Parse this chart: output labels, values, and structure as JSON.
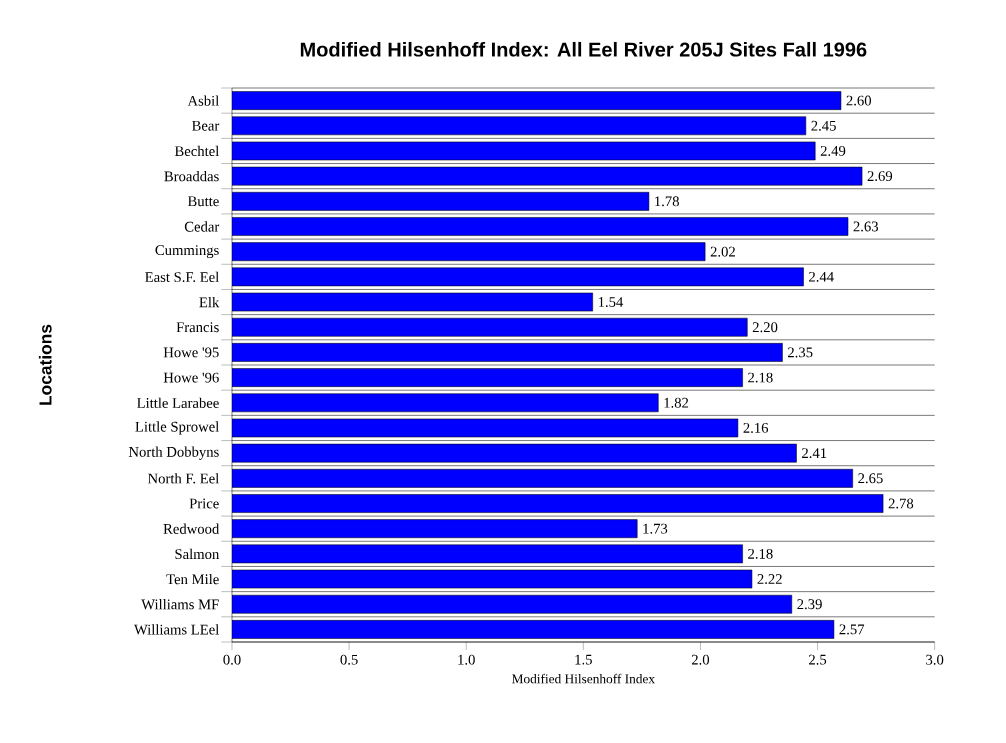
{
  "chart_data": {
    "type": "bar",
    "orientation": "horizontal",
    "title": "Modified Hilsenhoff Index: All Eel River 205J Sites Fall 1996",
    "xlabel": "Modified Hilsenhoff Index",
    "ylabel": "Locations",
    "categories": [
      "Asbil",
      "Bear",
      "Bechtel",
      "Broaddas",
      "Butte",
      "Cedar",
      "Cummings",
      "East S.F. Eel",
      "Elk",
      "Francis",
      "Howe '95",
      "Howe '96",
      "Little Larabee",
      "Little Sprowel",
      "North Dobbyns",
      "North F. Eel",
      "Price",
      "Redwood",
      "Salmon",
      "Ten Mile",
      "Williams MF",
      "Williams LEel"
    ],
    "values": [
      2.6,
      2.45,
      2.49,
      2.69,
      1.78,
      2.63,
      2.02,
      2.44,
      1.54,
      2.2,
      2.35,
      2.18,
      1.82,
      2.16,
      2.41,
      2.65,
      2.78,
      1.73,
      2.18,
      2.22,
      2.39,
      2.57
    ],
    "value_labels": [
      "2.60",
      "2.45",
      "2.49",
      "2.69",
      "1.78",
      "2.63",
      "2.02",
      "2.44",
      "1.54",
      "2.20",
      "2.35",
      "2.18",
      "1.82",
      "2.16",
      "2.41",
      "2.65",
      "2.78",
      "1.73",
      "2.18",
      "2.22",
      "2.39",
      "2.57"
    ],
    "color": "#0000ff",
    "xlim": [
      0,
      3
    ],
    "xticks": [
      {
        "value": 0,
        "label": "0.0"
      },
      {
        "value": 0.5,
        "label": "0.5"
      },
      {
        "value": 1,
        "label": "1.0"
      },
      {
        "value": 1.5,
        "label": "1.5"
      },
      {
        "value": 2,
        "label": "2.0"
      },
      {
        "value": 2.5,
        "label": "2.5"
      },
      {
        "value": 3,
        "label": "3.0"
      }
    ],
    "grid": "y"
  }
}
